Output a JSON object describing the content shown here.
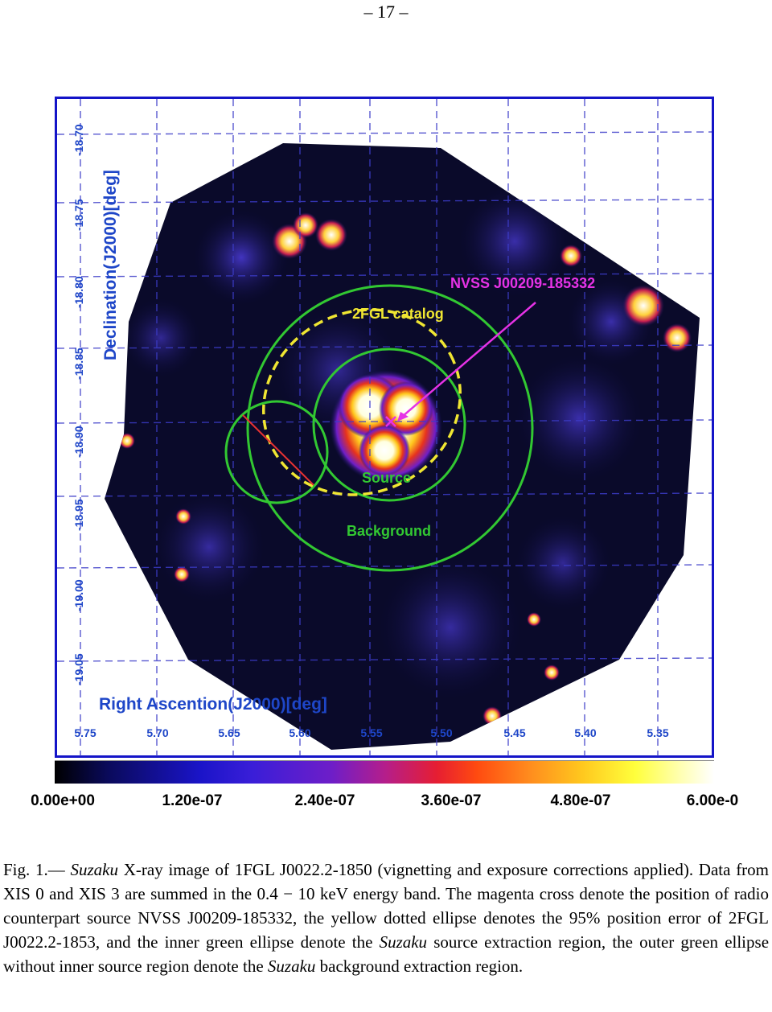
{
  "page_number": "– 17 –",
  "figure": {
    "x_axis_label": "Right Ascention(J2000)[deg]",
    "y_axis_label": "Declination(J2000)[deg]",
    "x_ticks": [
      "5.75",
      "5.70",
      "5.65",
      "5.60",
      "5.55",
      "5.50",
      "5.45",
      "5.40",
      "5.35"
    ],
    "y_ticks": [
      "-18.70",
      "-18.75",
      "-18.80",
      "-18.85",
      "-18.90",
      "-18.95",
      "-19.00",
      "-19.05"
    ],
    "annotations": {
      "nvss": "NVSS J00209-185332",
      "catalog": "2FGL catalog",
      "source": "Source",
      "background": "Background"
    },
    "colors": {
      "frame": "#1414c8",
      "axis_text": "#1e46c8",
      "source_circle": "#32c832",
      "catalog_ellipse": "#f0e632",
      "nvss_marker": "#e632e6"
    },
    "colorbar_ticks": [
      "0.00e+00",
      "1.20e-07",
      "2.40e-07",
      "3.60e-07",
      "4.80e-07",
      "6.00e-0"
    ]
  },
  "caption": {
    "prefix": "Fig. 1.— ",
    "s1_italic": "Suzaku",
    "s1_rest": " X-ray image of 1FGL J0022.2-1850 (vignetting and exposure corrections applied). Data from XIS 0 and XIS 3 are summed in the 0.4 − 10 keV energy band. The magenta cross denote the position of radio counterpart source NVSS J00209-185332, the yellow dotted ellipse denotes the 95% position error of 2FGL J0022.2-1853, and the inner green ellipse denote the ",
    "s2_italic": "Suzaku",
    "s2_rest": " source extraction region, the outer green ellipse without inner source region denote the ",
    "s3_italic": "Suzaku",
    "s3_rest": " background extraction region."
  }
}
